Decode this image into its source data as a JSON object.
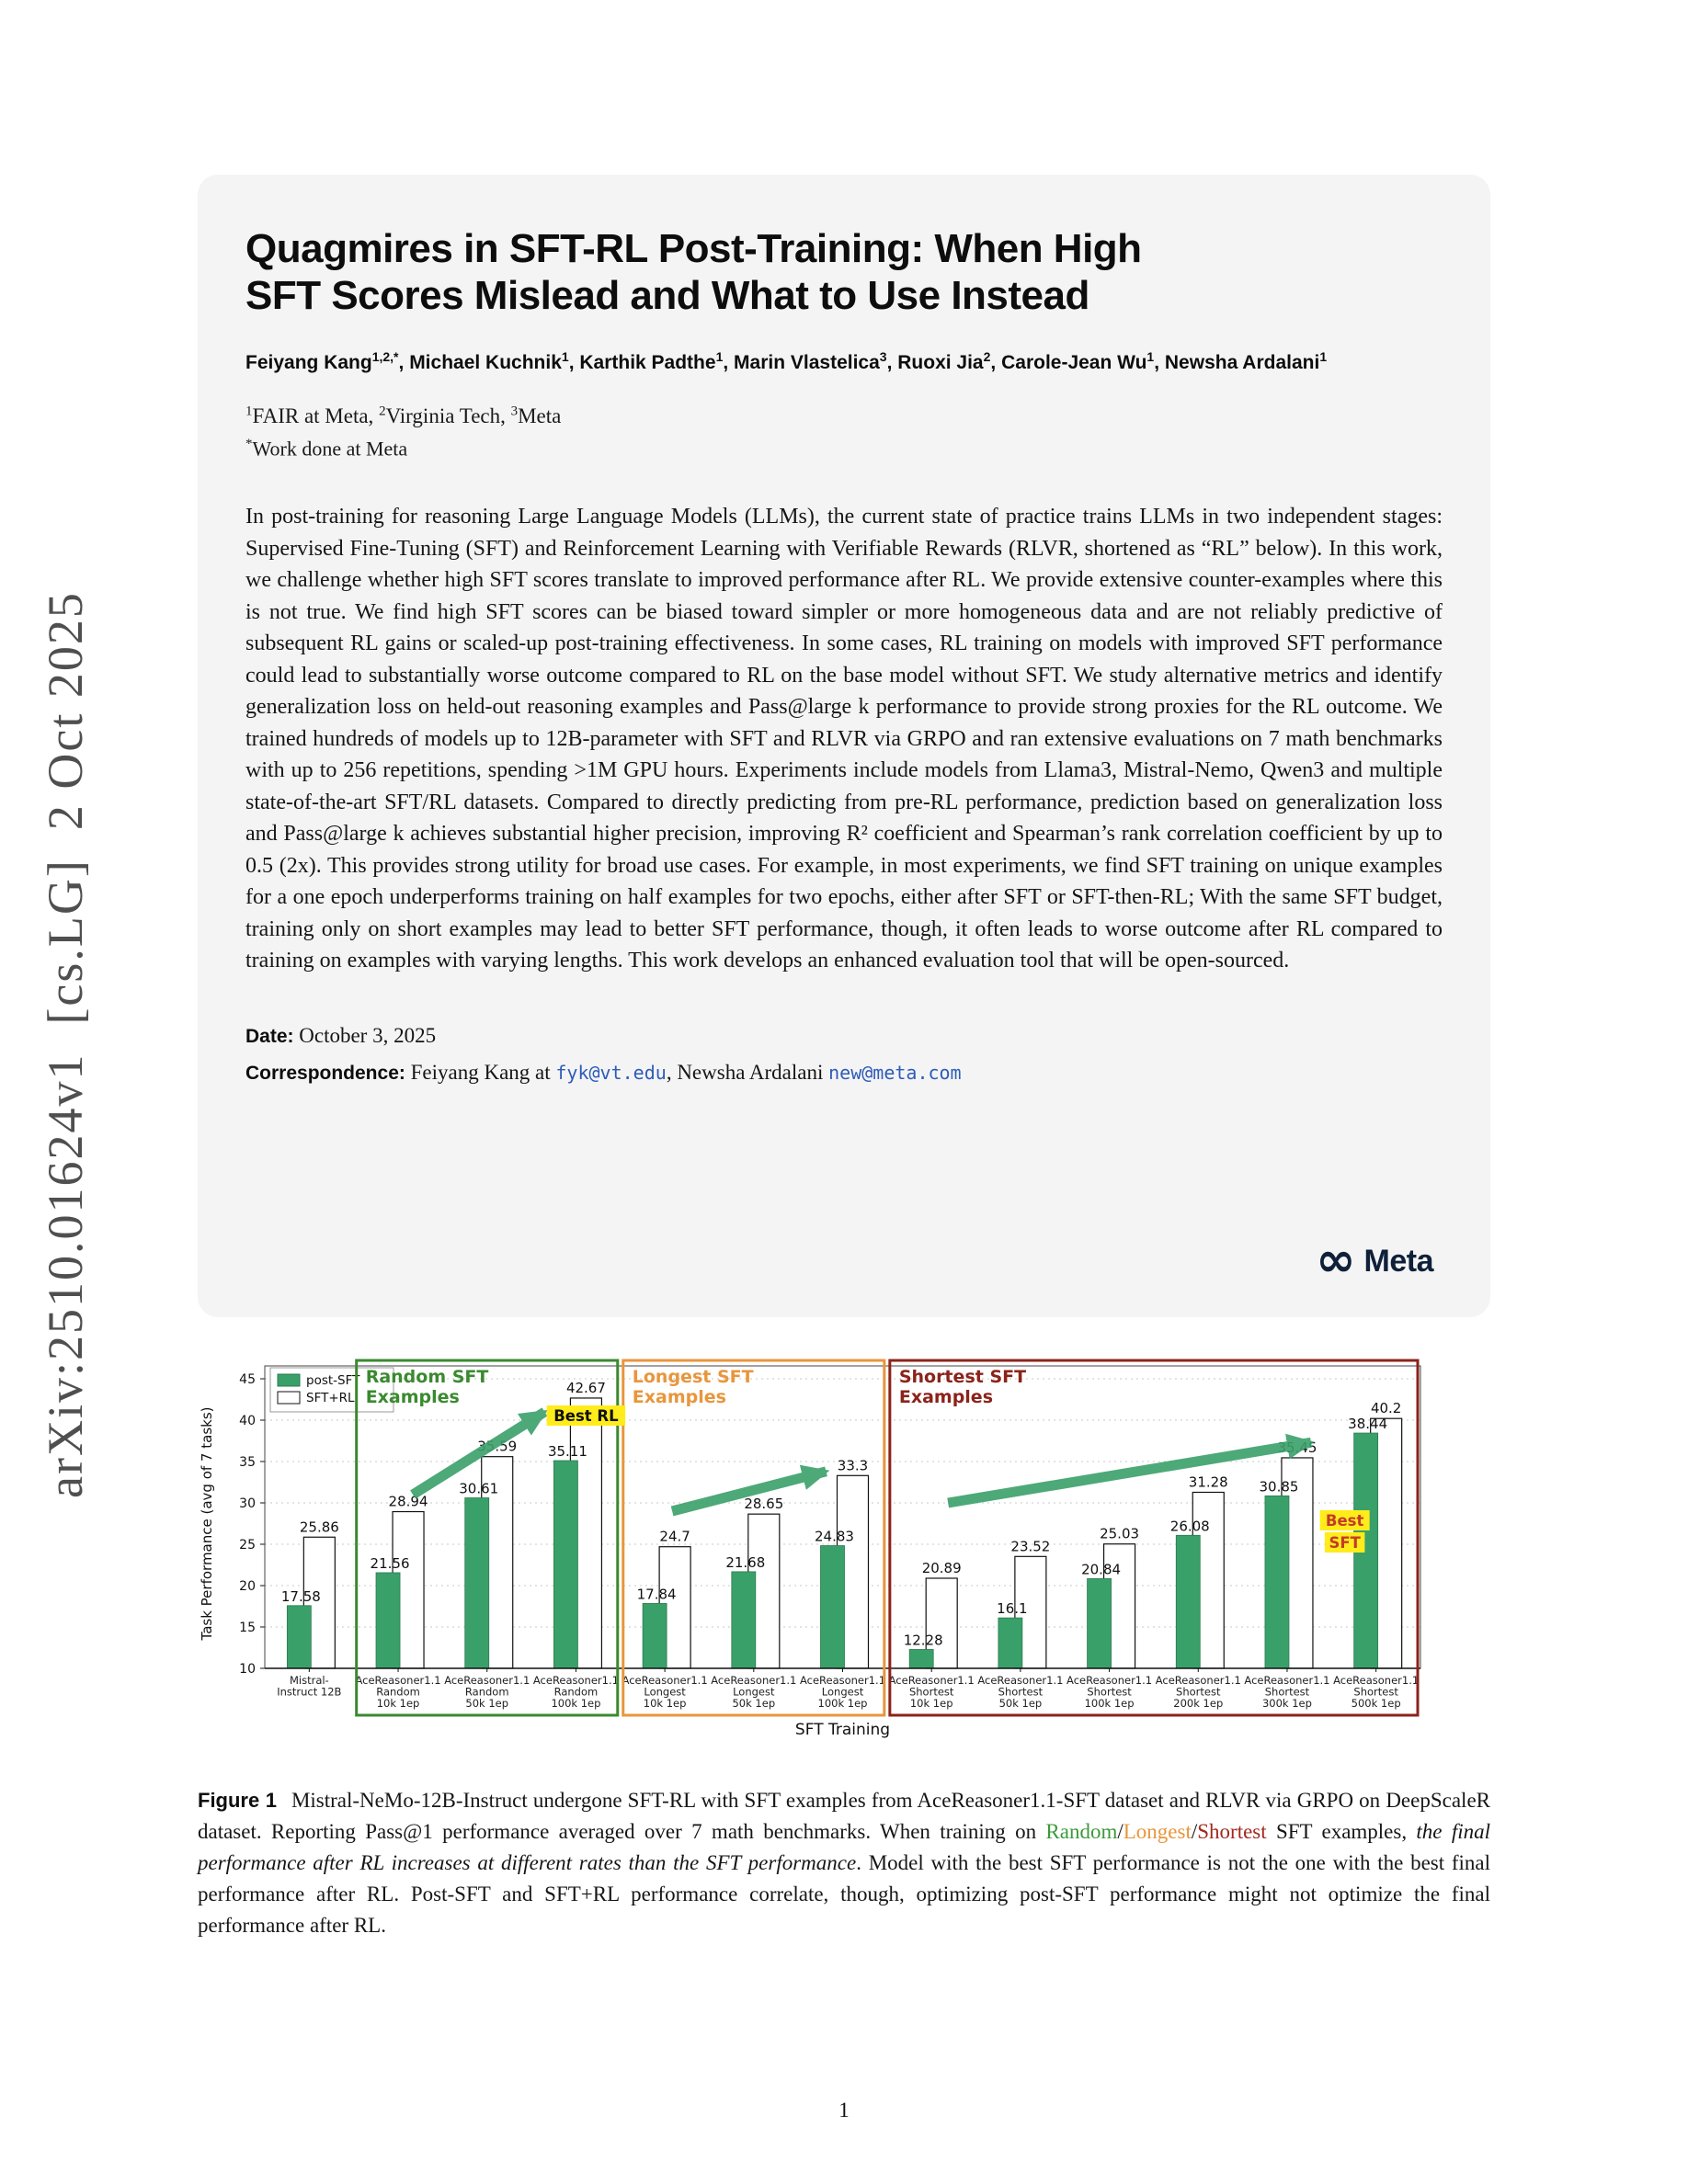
{
  "arxiv_watermark": "arXiv:2510.01624v1  [cs.LG]  2 Oct 2025",
  "header": {
    "title_line1": "Quagmires in SFT-RL Post-Training: When High",
    "title_line2": "SFT Scores Mislead and What to Use Instead",
    "authors": [
      {
        "name": "Feiyang Kang",
        "sup": "1,2,*"
      },
      {
        "name": "Michael Kuchnik",
        "sup": "1"
      },
      {
        "name": "Karthik Padthe",
        "sup": "1"
      },
      {
        "name": "Marin Vlastelica",
        "sup": "3"
      },
      {
        "name": "Ruoxi Jia",
        "sup": "2"
      },
      {
        "name": "Carole-Jean Wu",
        "sup": "1"
      },
      {
        "name": "Newsha Ardalani",
        "sup": "1"
      }
    ],
    "affiliations": [
      {
        "sup": "1",
        "text": "FAIR at Meta, "
      },
      {
        "sup": "2",
        "text": "Virginia Tech, "
      },
      {
        "sup": "3",
        "text": "Meta"
      }
    ],
    "footnote_sup": "*",
    "footnote": "Work done at Meta",
    "abstract": "In post-training for reasoning Large Language Models (LLMs), the current state of practice trains LLMs in two independent stages: Supervised Fine-Tuning (SFT) and Reinforcement Learning with Verifiable Rewards (RLVR, shortened as “RL” below). In this work, we challenge whether high SFT scores translate to improved performance after RL. We provide extensive counter-examples where this is not true. We find high SFT scores can be biased toward simpler or more homogeneous data and are not reliably predictive of subsequent RL gains or scaled-up post-training effectiveness. In some cases, RL training on models with improved SFT performance could lead to substantially worse outcome compared to RL on the base model without SFT. We study alternative metrics and identify generalization loss on held-out reasoning examples and Pass@large k performance to provide strong proxies for the RL outcome. We trained hundreds of models up to 12B-parameter with SFT and RLVR via GRPO and ran extensive evaluations on 7 math benchmarks with up to 256 repetitions, spending >1M GPU hours. Experiments include models from Llama3, Mistral-Nemo, Qwen3 and multiple state-of-the-art SFT/RL datasets. Compared to directly predicting from pre-RL performance, prediction based on generalization loss and Pass@large k achieves substantial higher precision, improving R² coefficient and Spearman’s rank correlation coefficient by up to 0.5 (2x). This provides strong utility for broad use cases. For example, in most experiments, we find SFT training on unique examples for a one epoch underperforms training on half examples for two epochs, either after SFT or SFT-then-RL; With the same SFT budget, training only on short examples may lead to better SFT performance, though, it often leads to worse outcome after RL compared to training on examples with varying lengths. This work develops an enhanced evaluation tool that will be open-sourced.",
    "date_label": "Date:",
    "date_value": "October 3, 2025",
    "correspondence_label": "Correspondence:",
    "correspondence_pre1": "Feiyang Kang at ",
    "email1": "fyk@vt.edu",
    "correspondence_mid": ", Newsha Ardalani ",
    "email2": "new@meta.com",
    "meta_logo_mark": "∞",
    "meta_logo_text": "Meta"
  },
  "chart_data": {
    "type": "bar",
    "title": "",
    "ylabel": "Task Performance (avg of 7 tasks)",
    "xlabel": "SFT Training",
    "ylim": [
      10,
      45
    ],
    "yticks": [
      10,
      15,
      20,
      25,
      30,
      35,
      40,
      45
    ],
    "grid": "horizontal-dotted",
    "legend_position": "upper-left",
    "arrow_color": "#3aa06a",
    "series": [
      {
        "name": "post-SFT",
        "color": "#3aa06a",
        "values": [
          17.58,
          21.56,
          30.61,
          35.11,
          17.84,
          21.68,
          24.83,
          12.28,
          16.1,
          20.84,
          26.08,
          30.85,
          38.44
        ]
      },
      {
        "name": "SFT+RL",
        "color": "#ffffff",
        "values": [
          25.86,
          28.94,
          35.59,
          42.67,
          24.7,
          28.65,
          33.3,
          20.89,
          23.52,
          25.03,
          31.28,
          35.45,
          40.2
        ]
      }
    ],
    "categories": [
      [
        "Mistral-",
        "Instruct 12B"
      ],
      [
        "AceReasoner1.1",
        "Random",
        "10k 1ep"
      ],
      [
        "AceReasoner1.1",
        "Random",
        "50k 1ep"
      ],
      [
        "AceReasoner1.1",
        "Random",
        "100k 1ep"
      ],
      [
        "AceReasoner1.1",
        "Longest",
        "10k 1ep"
      ],
      [
        "AceReasoner1.1",
        "Longest",
        "50k 1ep"
      ],
      [
        "AceReasoner1.1",
        "Longest",
        "100k 1ep"
      ],
      [
        "AceReasoner1.1",
        "Shortest",
        "10k 1ep"
      ],
      [
        "AceReasoner1.1",
        "Shortest",
        "50k 1ep"
      ],
      [
        "AceReasoner1.1",
        "Shortest",
        "100k 1ep"
      ],
      [
        "AceReasoner1.1",
        "Shortest",
        "200k 1ep"
      ],
      [
        "AceReasoner1.1",
        "Shortest",
        "300k 1ep"
      ],
      [
        "AceReasoner1.1",
        "Shortest",
        "500k 1ep"
      ]
    ],
    "sections": [
      {
        "title_lines": [
          "Random SFT",
          "Examples"
        ],
        "color": "#3a8a2f",
        "start": 1,
        "end": 3
      },
      {
        "title_lines": [
          "Longest SFT",
          "Examples"
        ],
        "color": "#e8963c",
        "start": 4,
        "end": 6
      },
      {
        "title_lines": [
          "Shortest SFT",
          "Examples"
        ],
        "color": "#8b231a",
        "start": 7,
        "end": 12
      }
    ],
    "annotations": [
      {
        "lines": [
          "Best RL"
        ],
        "text_color": "#111111",
        "bg": "#ffec1a",
        "group": 3
      },
      {
        "lines": [
          "Best",
          "SFT"
        ],
        "text_color": "#c43a2a",
        "bg": "#ffec1a",
        "group": 12
      }
    ]
  },
  "caption": {
    "label": "Figure 1",
    "part1": "Mistral-NeMo-12B-Instruct undergone SFT-RL with SFT examples from AceReasoner1.1-SFT dataset and RLVR via GRPO on DeepScaleR dataset. Reporting Pass@1 performance averaged over 7 math benchmarks. When training on ",
    "word_random": "Random",
    "sep1": "/",
    "word_longest": "Longest",
    "sep2": "/",
    "word_shortest": "Shortest",
    "part2": " SFT examples, ",
    "italic_part": "the final performance after RL increases at different rates than the SFT performance",
    "part3": ". Model with the best SFT performance is not the one with the best final performance after RL. Post-SFT and SFT+RL performance correlate, though, optimizing post-SFT performance might not optimize the final performance after RL."
  },
  "page_number": "1"
}
